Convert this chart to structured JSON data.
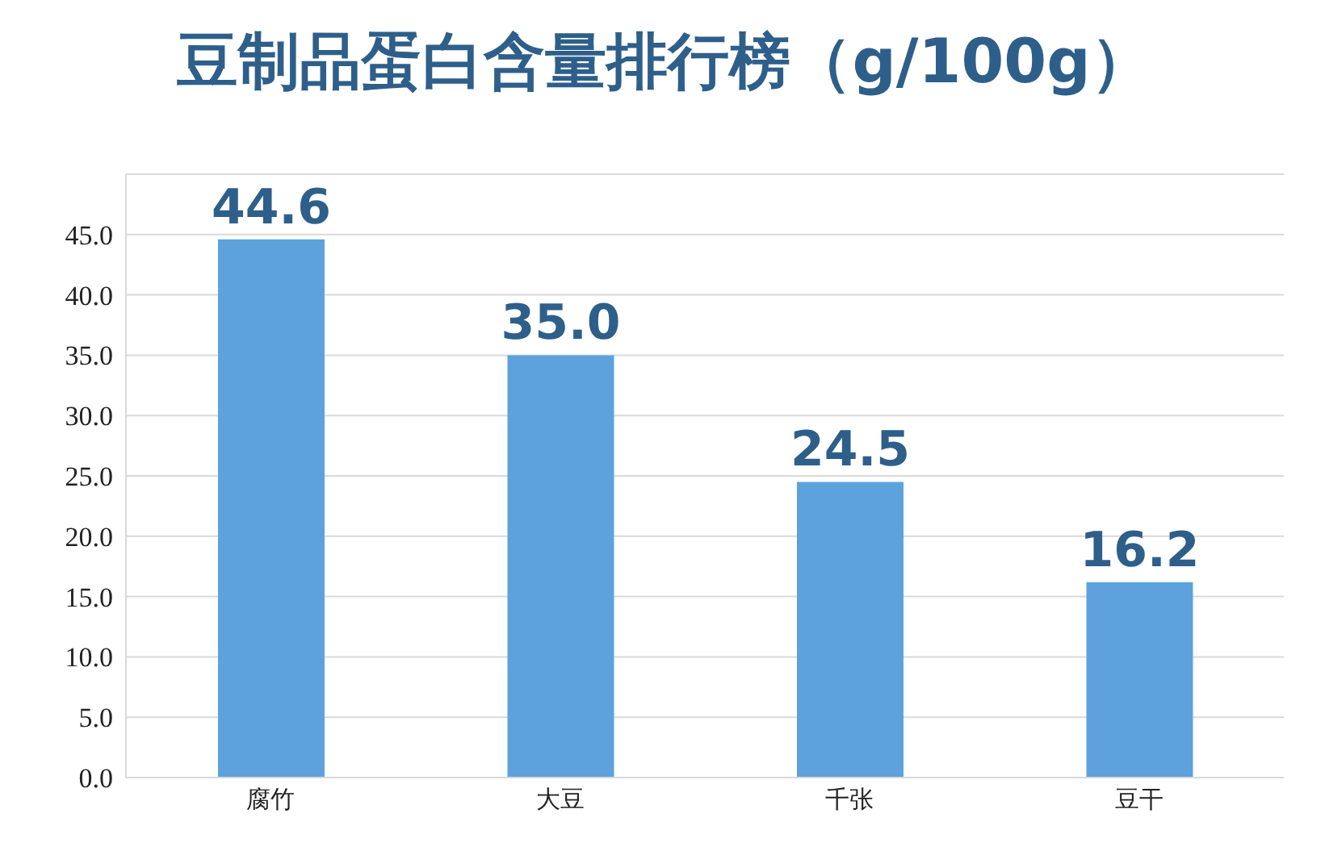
{
  "chart_data": {
    "type": "bar",
    "title": "豆制品蛋白含量排行榜（g/100g）",
    "categories": [
      "腐竹",
      "大豆",
      "千张",
      "豆干"
    ],
    "values": [
      44.6,
      35.0,
      24.5,
      16.2
    ],
    "value_labels": [
      "44.6",
      "35.0",
      "24.5",
      "16.2"
    ],
    "color": "#5da2dd",
    "ylim": [
      0,
      50
    ],
    "yticks": [
      {
        "value": 0,
        "label": "0.0"
      },
      {
        "value": 5,
        "label": "5.0"
      },
      {
        "value": 10,
        "label": "10.0"
      },
      {
        "value": 15,
        "label": "15.0"
      },
      {
        "value": 20,
        "label": "20.0"
      },
      {
        "value": 25,
        "label": "25.0"
      },
      {
        "value": 30,
        "label": "30.0"
      },
      {
        "value": 35,
        "label": "35.0"
      },
      {
        "value": 40,
        "label": "40.0"
      },
      {
        "value": 45,
        "label": "45.0"
      },
      {
        "value": 50,
        "label": null
      }
    ],
    "grid": "y"
  }
}
